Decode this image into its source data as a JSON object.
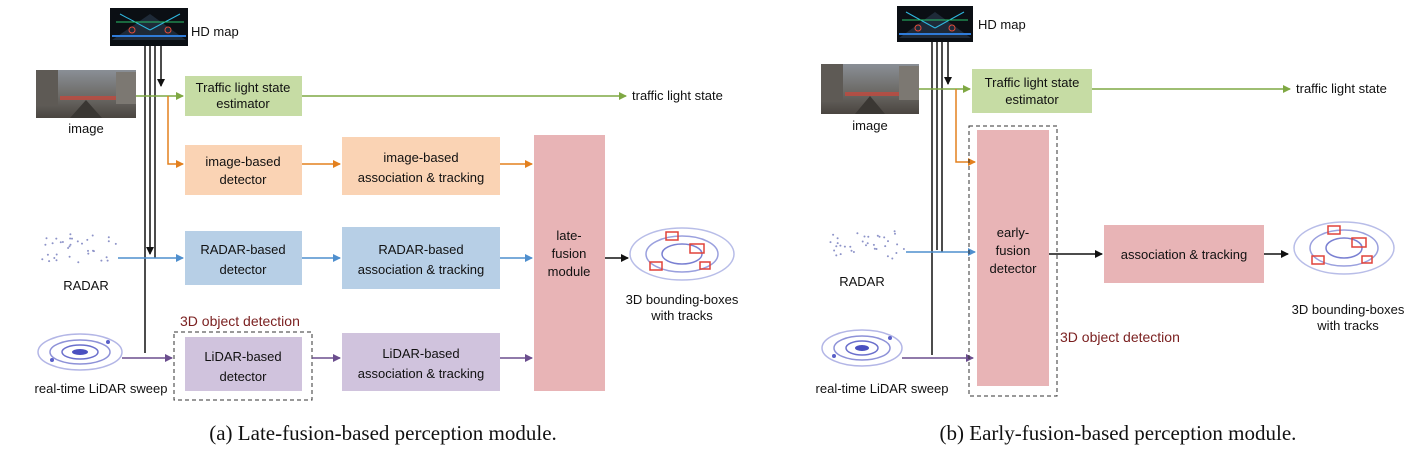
{
  "colors": {
    "green_box": "#c6dca4",
    "orange_box": "#fad3b4",
    "blue_box": "#b7cfe6",
    "purple_box": "#d0c3dd",
    "pink_box": "#e8b4b6",
    "green_line": "#7fa843",
    "orange_line": "#e3801e",
    "blue_line": "#4f8fce",
    "purple_line": "#6b4e8e",
    "black_line": "#111111",
    "red_text": "#7a1f1f"
  },
  "left": {
    "hd_map": "HD map",
    "image": "image",
    "radar": "RADAR",
    "lidar": "real-time LiDAR sweep",
    "traffic_box": [
      "Traffic light state",
      "estimator"
    ],
    "traffic_output": "traffic light state",
    "image_detector": [
      "image-based",
      "detector"
    ],
    "image_tracking": [
      "image-based",
      "association & tracking"
    ],
    "radar_detector": [
      "RADAR-based",
      "detector"
    ],
    "radar_tracking": [
      "RADAR-based",
      "association & tracking"
    ],
    "lidar_detector": [
      "LiDAR-based",
      "detector"
    ],
    "lidar_tracking": [
      "LiDAR-based",
      "association & tracking"
    ],
    "fusion": [
      "late-",
      "fusion",
      "module"
    ],
    "object_detection": "3D object detection",
    "output": [
      "3D bounding-boxes",
      "with tracks"
    ],
    "caption": "(a) Late-fusion-based perception module."
  },
  "right": {
    "hd_map": "HD map",
    "image": "image",
    "radar": "RADAR",
    "lidar": "real-time LiDAR sweep",
    "traffic_box": [
      "Traffic light state",
      "estimator"
    ],
    "traffic_output": "traffic light state",
    "fusion_detector": [
      "early-",
      "fusion",
      "detector"
    ],
    "tracking": "association & tracking",
    "object_detection": "3D object detection",
    "output": [
      "3D bounding-boxes",
      "with tracks"
    ],
    "caption": "(b) Early-fusion-based perception module."
  }
}
